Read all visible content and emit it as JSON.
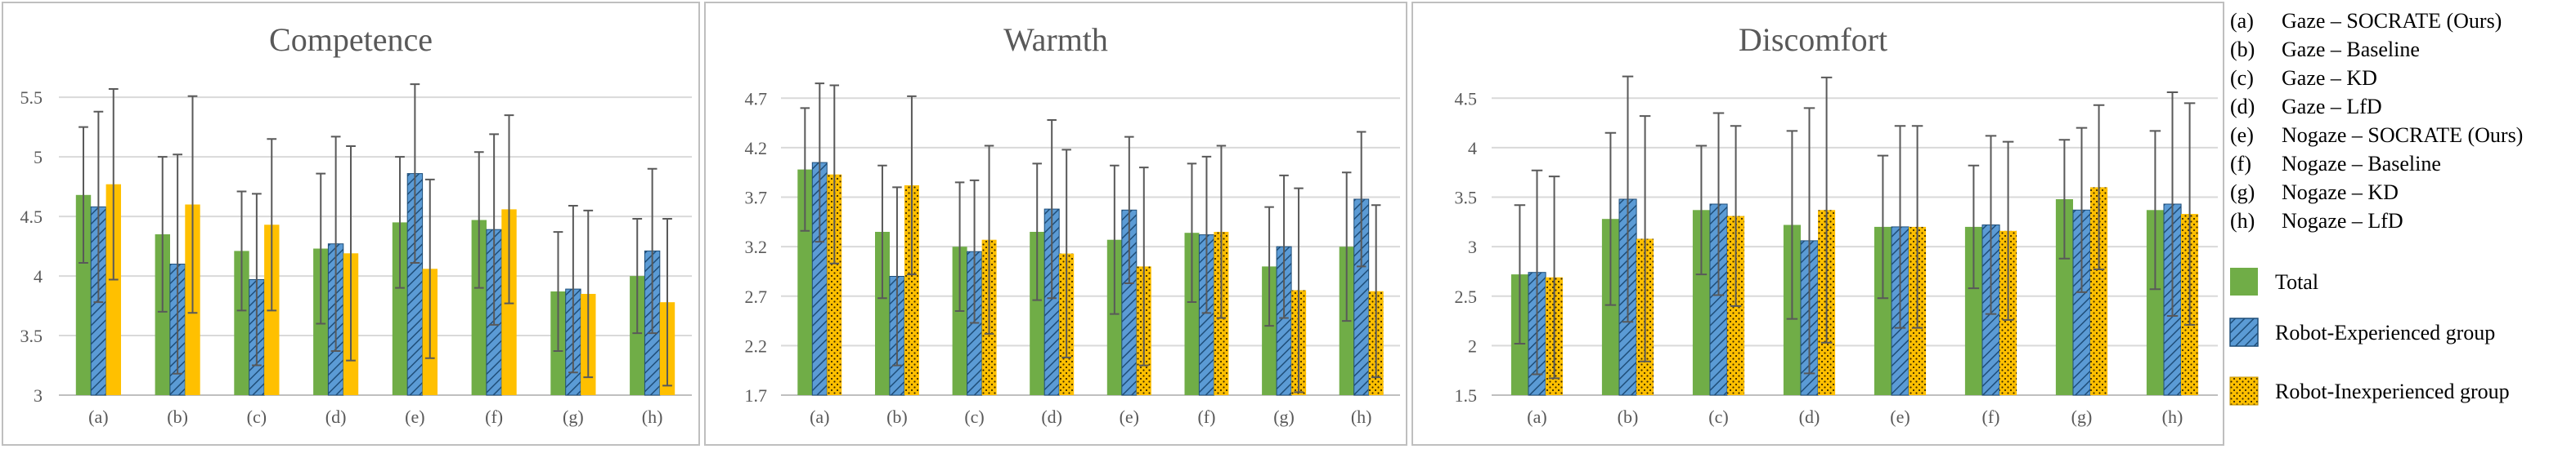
{
  "colors": {
    "total": "#70AD47",
    "experienced": "#5B9BD5",
    "inexperienced": "#FFC000"
  },
  "chart_data": [
    {
      "type": "bar",
      "title": "Competence",
      "categories": [
        "(a)",
        "(b)",
        "(c)",
        "(d)",
        "(e)",
        "(f)",
        "(g)",
        "(h)"
      ],
      "ylim": [
        3,
        5.7
      ],
      "yticks": [
        "3",
        "3.5",
        "4",
        "4.5",
        "5",
        "5.5"
      ],
      "ytick_values": [
        3,
        3.5,
        4,
        4.5,
        5,
        5.5
      ],
      "inexperienced_style": "solid",
      "series": [
        {
          "name": "Total",
          "values": [
            4.68,
            4.35,
            4.21,
            4.23,
            4.45,
            4.47,
            3.87,
            4.0
          ],
          "errors": [
            0.57,
            0.65,
            0.5,
            0.63,
            0.55,
            0.57,
            0.5,
            0.48
          ]
        },
        {
          "name": "Robot-Experienced group",
          "values": [
            4.58,
            4.1,
            3.97,
            4.27,
            4.86,
            4.39,
            3.89,
            4.21
          ],
          "errors": [
            0.8,
            0.92,
            0.72,
            0.9,
            0.75,
            0.8,
            0.7,
            0.69
          ]
        },
        {
          "name": "Robot-Inexperienced group",
          "values": [
            4.77,
            4.6,
            4.43,
            4.19,
            4.06,
            4.56,
            3.85,
            3.78
          ],
          "errors": [
            0.8,
            0.91,
            0.72,
            0.9,
            0.75,
            0.79,
            0.7,
            0.7
          ]
        }
      ]
    },
    {
      "type": "bar",
      "title": "Warmth",
      "categories": [
        "(a)",
        "(b)",
        "(c)",
        "(d)",
        "(e)",
        "(f)",
        "(g)",
        "(h)"
      ],
      "ylim": [
        1.7,
        4.95
      ],
      "yticks": [
        "1.7",
        "2.2",
        "2.7",
        "3.2",
        "3.7",
        "4.2",
        "4.7"
      ],
      "ytick_values": [
        1.7,
        2.2,
        2.7,
        3.2,
        3.7,
        4.2,
        4.7
      ],
      "inexperienced_style": "dotted",
      "series": [
        {
          "name": "Total",
          "values": [
            3.98,
            3.35,
            3.2,
            3.35,
            3.27,
            3.34,
            3.0,
            3.2
          ],
          "errors": [
            0.62,
            0.67,
            0.65,
            0.69,
            0.75,
            0.7,
            0.6,
            0.75
          ]
        },
        {
          "name": "Robot-Experienced group",
          "values": [
            4.05,
            2.9,
            3.15,
            3.58,
            3.57,
            3.32,
            3.2,
            3.68
          ],
          "errors": [
            0.8,
            0.9,
            0.72,
            0.9,
            0.74,
            0.79,
            0.72,
            0.68
          ]
        },
        {
          "name": "Robot-Inexperienced group",
          "values": [
            3.93,
            3.82,
            3.27,
            3.13,
            3.0,
            3.35,
            2.76,
            2.75
          ],
          "errors": [
            0.9,
            0.9,
            0.95,
            1.05,
            1.0,
            0.87,
            1.03,
            0.87
          ]
        }
      ]
    },
    {
      "type": "bar",
      "title": "Discomfort",
      "categories": [
        "(a)",
        "(b)",
        "(c)",
        "(d)",
        "(e)",
        "(f)",
        "(g)",
        "(h)"
      ],
      "ylim": [
        1.5,
        4.75
      ],
      "yticks": [
        "1.5",
        "2",
        "2.5",
        "3",
        "3.5",
        "4",
        "4.5"
      ],
      "ytick_values": [
        1.5,
        2,
        2.5,
        3,
        3.5,
        4,
        4.5
      ],
      "inexperienced_style": "dotted",
      "series": [
        {
          "name": "Total",
          "values": [
            2.72,
            3.28,
            3.37,
            3.22,
            3.2,
            3.2,
            3.48,
            3.37
          ],
          "errors": [
            0.7,
            0.87,
            0.65,
            0.95,
            0.72,
            0.62,
            0.6,
            0.8
          ]
        },
        {
          "name": "Robot-Experienced group",
          "values": [
            2.74,
            3.48,
            3.43,
            3.06,
            3.2,
            3.22,
            3.37,
            3.43
          ],
          "errors": [
            1.03,
            1.24,
            0.92,
            1.34,
            1.02,
            0.9,
            0.83,
            1.13
          ]
        },
        {
          "name": "Robot-Inexperienced group",
          "values": [
            2.69,
            3.08,
            3.31,
            3.37,
            3.2,
            3.16,
            3.6,
            3.33
          ],
          "errors": [
            1.02,
            1.24,
            0.91,
            1.34,
            1.02,
            0.9,
            0.83,
            1.12
          ]
        }
      ]
    }
  ],
  "legend": {
    "conditions": [
      {
        "key": "(a)",
        "label": "Gaze – SOCRATE (Ours)"
      },
      {
        "key": "(b)",
        "label": "Gaze – Baseline"
      },
      {
        "key": "(c)",
        "label": "Gaze – KD"
      },
      {
        "key": "(d)",
        "label": "Gaze – LfD"
      },
      {
        "key": "(e)",
        "label": "Nogaze – SOCRATE (Ours)"
      },
      {
        "key": "(f)",
        "label": "Nogaze – Baseline"
      },
      {
        "key": "(g)",
        "label": "Nogaze – KD"
      },
      {
        "key": "(h)",
        "label": "Nogaze – LfD"
      }
    ],
    "series": [
      "Total",
      "Robot-Experienced group",
      "Robot-Inexperienced group"
    ]
  }
}
